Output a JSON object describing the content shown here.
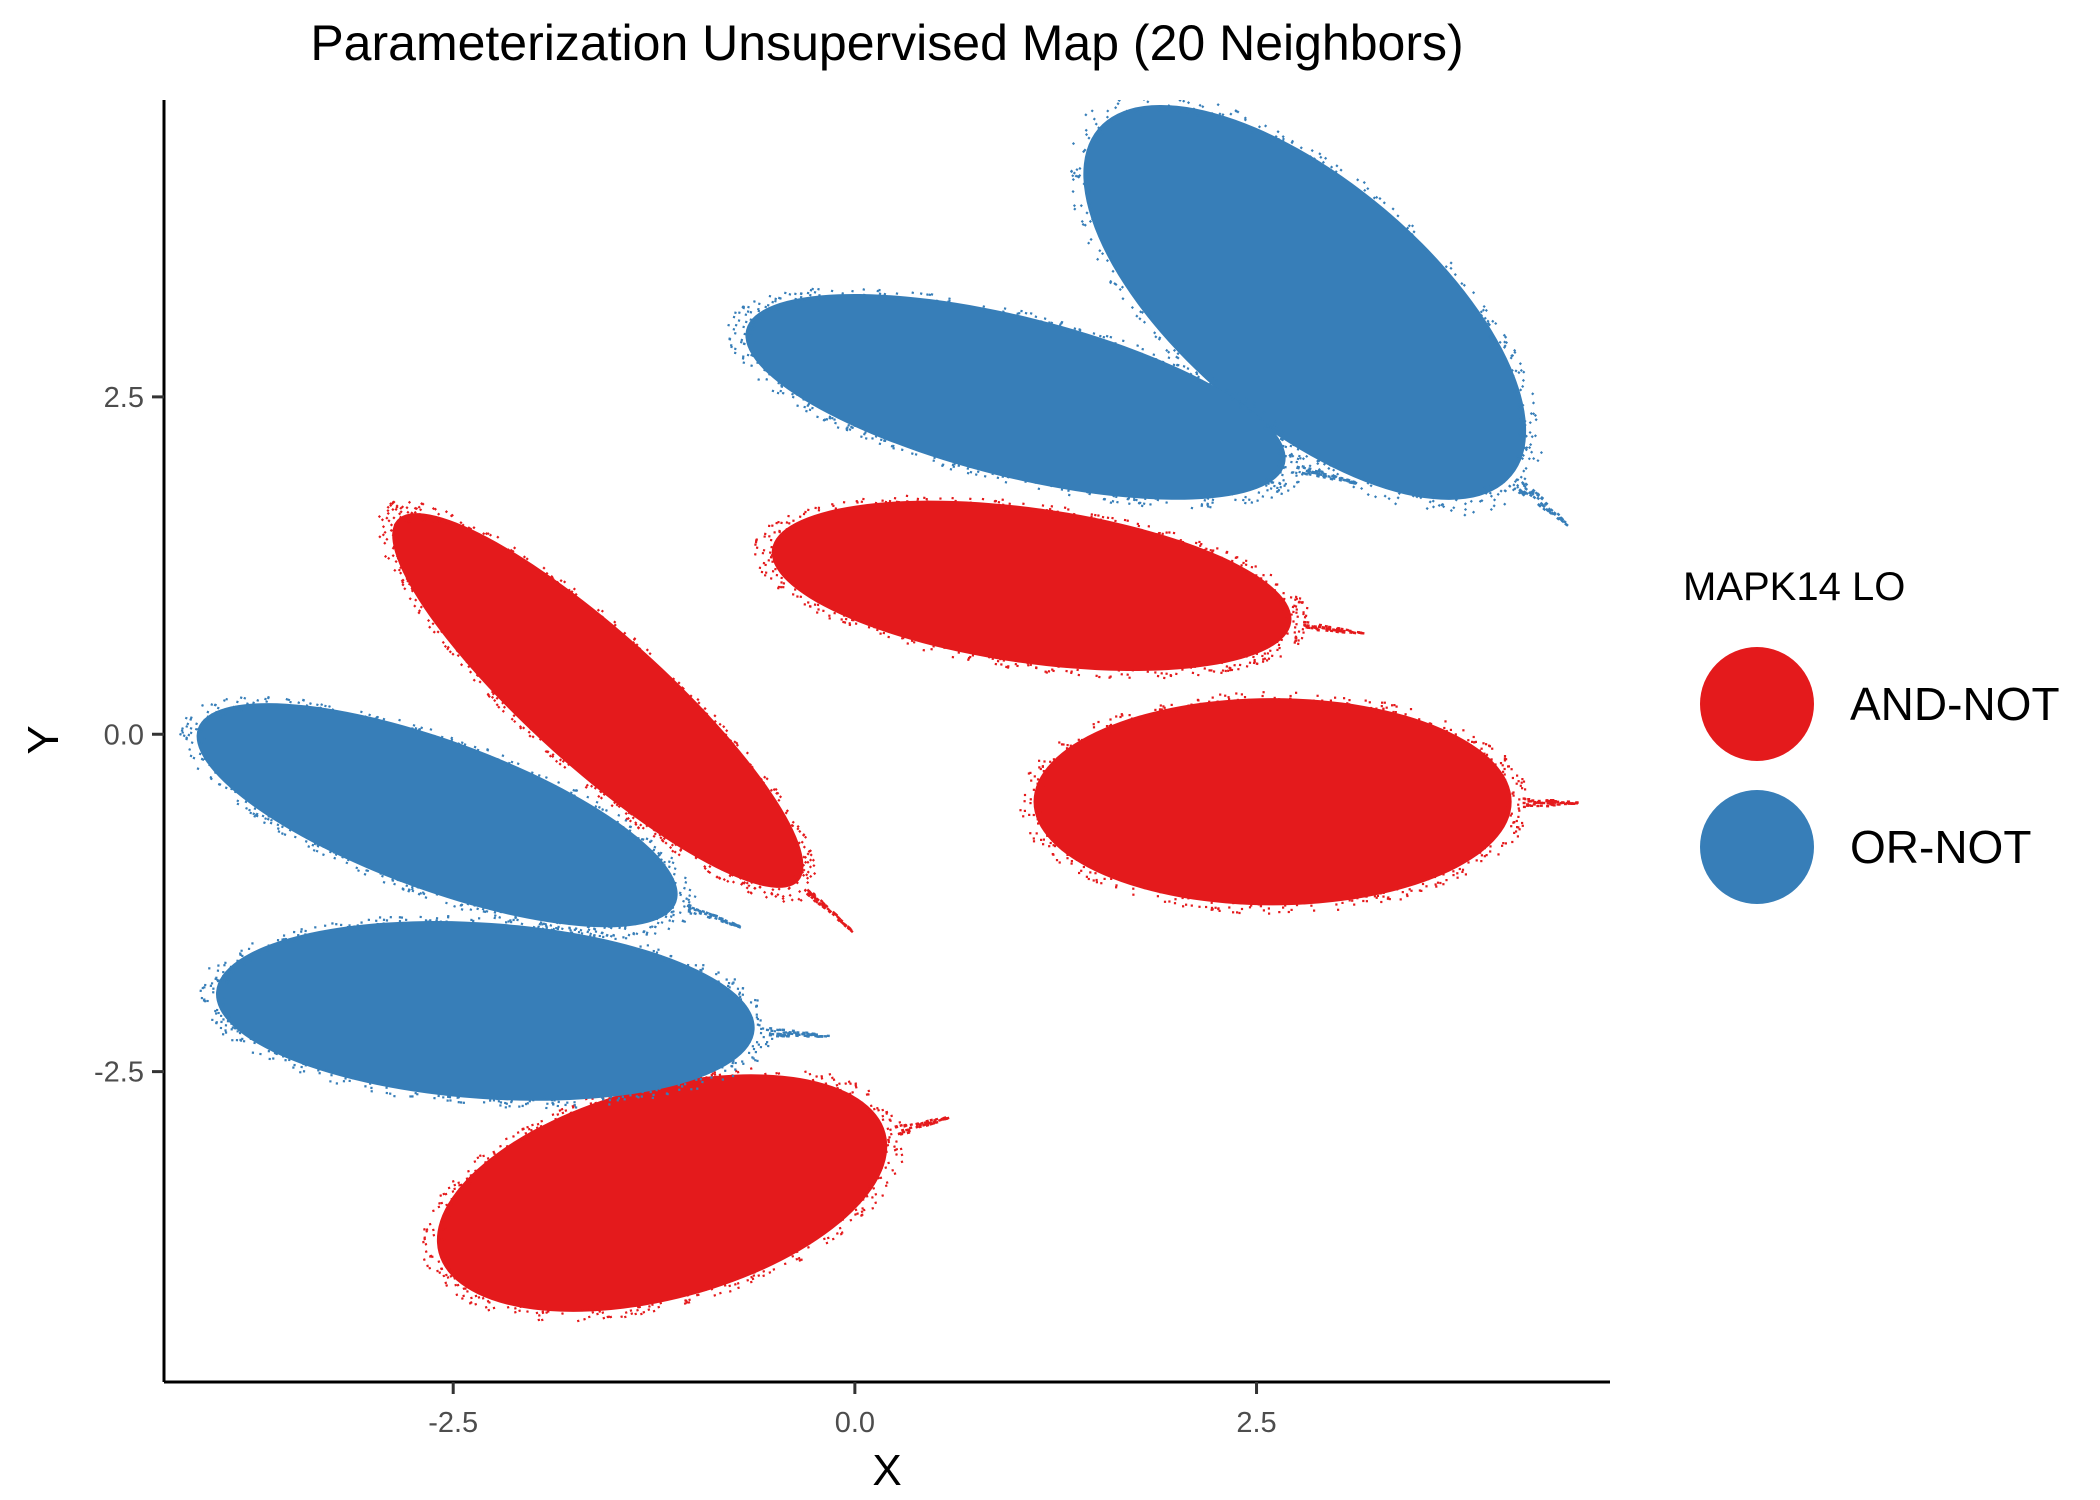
{
  "chart_data": {
    "type": "scatter",
    "title": "Parameterization Unsupervised Map (20 Neighbors)",
    "xlabel": "X",
    "ylabel": "Y",
    "xlim": [
      -4.3,
      4.7
    ],
    "ylim": [
      -4.8,
      4.7
    ],
    "x_ticks": [
      -2.5,
      0.0,
      2.5
    ],
    "x_tick_labels": [
      "-2.5",
      "0.0",
      "2.5"
    ],
    "y_ticks": [
      -2.5,
      0.0,
      2.5
    ],
    "y_tick_labels": [
      "-2.5",
      "0.0",
      "2.5"
    ],
    "grid": false,
    "legend": {
      "title": "MAPK14 LO",
      "position": "right",
      "entries": [
        {
          "label": "AND-NOT",
          "color": "#E41A1C"
        },
        {
          "label": "OR-NOT",
          "color": "#377EB8"
        }
      ]
    },
    "series": [
      {
        "name": "AND-NOT",
        "color": "#E41A1C",
        "clusters": [
          {
            "center": [
              -1.2,
              -3.4
            ],
            "rx": 1.5,
            "ry": 0.82,
            "angle": 15
          },
          {
            "center": [
              2.6,
              -0.5
            ],
            "rx": 1.55,
            "ry": 0.8,
            "angle": 0
          },
          {
            "center": [
              1.1,
              1.1
            ],
            "rx": 1.7,
            "ry": 0.6,
            "angle": -8
          },
          {
            "center": [
              -1.6,
              0.25
            ],
            "rx": 1.75,
            "ry": 0.52,
            "angle": -42
          }
        ]
      },
      {
        "name": "OR-NOT",
        "color": "#377EB8",
        "clusters": [
          {
            "center": [
              2.8,
              3.2
            ],
            "rx": 1.75,
            "ry": 0.95,
            "angle": -40
          },
          {
            "center": [
              1.0,
              2.5
            ],
            "rx": 1.8,
            "ry": 0.62,
            "angle": -14
          },
          {
            "center": [
              -2.6,
              -0.6
            ],
            "rx": 1.65,
            "ry": 0.58,
            "angle": -20
          },
          {
            "center": [
              -2.3,
              -2.05
            ],
            "rx": 1.75,
            "ry": 0.68,
            "angle": -4
          }
        ]
      }
    ]
  }
}
